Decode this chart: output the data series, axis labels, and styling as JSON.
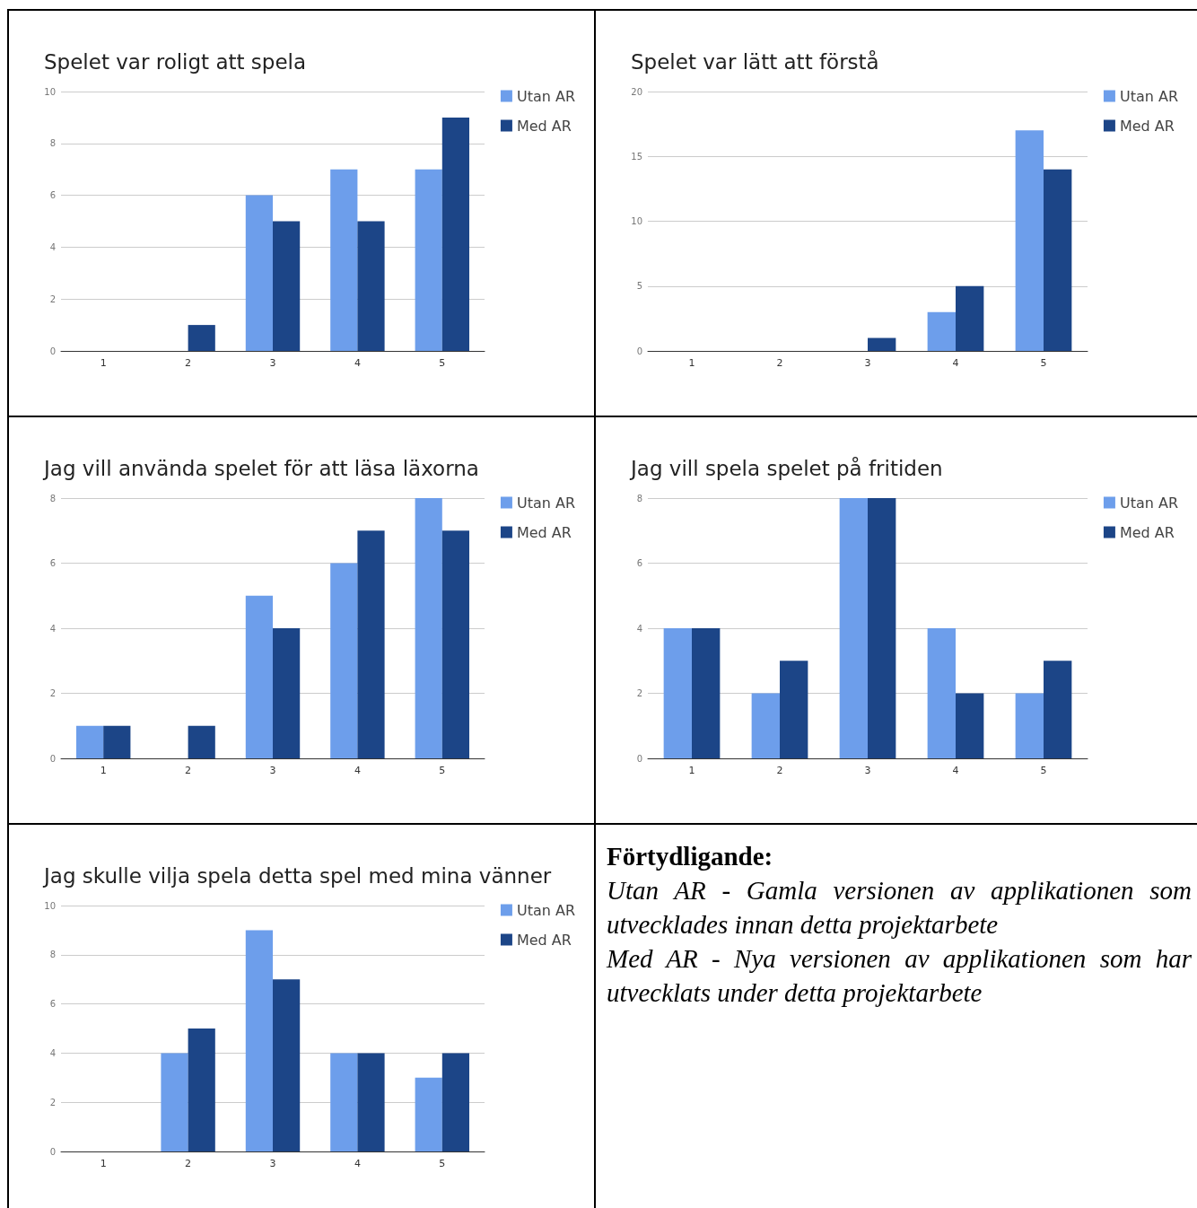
{
  "chart_data": [
    {
      "type": "bar",
      "title": "Spelet var roligt att spela",
      "categories": [
        "1",
        "2",
        "3",
        "4",
        "5"
      ],
      "ylim": [
        0,
        10
      ],
      "yticks": [
        0,
        2,
        4,
        6,
        8,
        10
      ],
      "grid": "y",
      "legend": "top right",
      "series": [
        {
          "name": "Utan AR",
          "color": "#6d9eeb",
          "values": [
            0,
            0,
            6,
            7,
            7
          ]
        },
        {
          "name": "Med AR",
          "color": "#1c4587",
          "values": [
            0,
            1,
            5,
            5,
            9
          ]
        }
      ]
    },
    {
      "type": "bar",
      "title": "Spelet var lätt att förstå",
      "categories": [
        "1",
        "2",
        "3",
        "4",
        "5"
      ],
      "ylim": [
        0,
        20
      ],
      "yticks": [
        0,
        5,
        10,
        15,
        20
      ],
      "grid": "y",
      "legend": "top right",
      "series": [
        {
          "name": "Utan AR",
          "color": "#6d9eeb",
          "values": [
            0,
            0,
            0,
            3,
            17
          ]
        },
        {
          "name": "Med AR",
          "color": "#1c4587",
          "values": [
            0,
            0,
            1,
            5,
            14
          ]
        }
      ]
    },
    {
      "type": "bar",
      "title": "Jag vill använda spelet för att läsa läxorna",
      "categories": [
        "1",
        "2",
        "3",
        "4",
        "5"
      ],
      "ylim": [
        0,
        8
      ],
      "yticks": [
        0,
        2,
        4,
        6,
        8
      ],
      "grid": "y",
      "legend": "top right",
      "series": [
        {
          "name": "Utan AR",
          "color": "#6d9eeb",
          "values": [
            1,
            0,
            5,
            6,
            8
          ]
        },
        {
          "name": "Med AR",
          "color": "#1c4587",
          "values": [
            1,
            1,
            4,
            7,
            7
          ]
        }
      ]
    },
    {
      "type": "bar",
      "title": "Jag vill spela spelet på fritiden",
      "categories": [
        "1",
        "2",
        "3",
        "4",
        "5"
      ],
      "ylim": [
        0,
        8
      ],
      "yticks": [
        0,
        2,
        4,
        6,
        8
      ],
      "grid": "y",
      "legend": "top right",
      "series": [
        {
          "name": "Utan AR",
          "color": "#6d9eeb",
          "values": [
            4,
            2,
            8,
            4,
            2
          ]
        },
        {
          "name": "Med AR",
          "color": "#1c4587",
          "values": [
            4,
            3,
            8,
            2,
            3
          ]
        }
      ]
    },
    {
      "type": "bar",
      "title": "Jag skulle vilja spela detta spel med mina vänner",
      "categories": [
        "1",
        "2",
        "3",
        "4",
        "5"
      ],
      "ylim": [
        0,
        10
      ],
      "yticks": [
        0,
        2,
        4,
        6,
        8,
        10
      ],
      "grid": "y",
      "legend": "top right",
      "series": [
        {
          "name": "Utan AR",
          "color": "#6d9eeb",
          "values": [
            0,
            4,
            9,
            4,
            3
          ]
        },
        {
          "name": "Med AR",
          "color": "#1c4587",
          "values": [
            0,
            5,
            7,
            4,
            4
          ]
        }
      ]
    },
    {
      "type": "other",
      "title": "Förtydligande:",
      "annotations": [
        "Utan AR - Gamla versionen av applikationen som utvecklades innan detta projektarbete",
        "Med AR - Nya versionen av applikationen som har utvecklats under detta projektarbete"
      ]
    }
  ]
}
